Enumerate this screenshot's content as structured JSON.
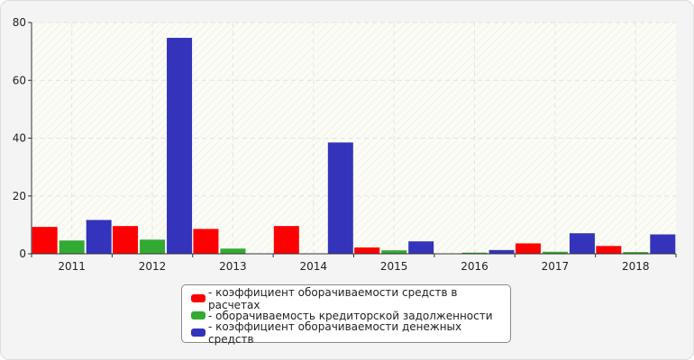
{
  "chart_data": {
    "type": "bar",
    "categories": [
      "2011",
      "2012",
      "2013",
      "2014",
      "2015",
      "2016",
      "2017",
      "2018"
    ],
    "series": [
      {
        "name": "- коэффициент оборачиваемости средств в расчетах",
        "color": "#ff0000",
        "values": [
          9.3,
          9.6,
          8.6,
          9.6,
          2.2,
          0,
          3.6,
          2.7
        ]
      },
      {
        "name": "- оборачиваемость кредиторской задолженности",
        "color": "#33aa33",
        "values": [
          4.6,
          4.9,
          1.8,
          0,
          1.2,
          0.4,
          0.7,
          0.6
        ]
      },
      {
        "name": "- коэффициент оборачиваемости денежных средств",
        "color": "#3333bb",
        "values": [
          11.7,
          74.7,
          0,
          38.5,
          4.3,
          1.3,
          7.1,
          6.7
        ]
      }
    ],
    "yticks": [
      0,
      20,
      40,
      60,
      80
    ],
    "ylim": [
      0,
      80
    ],
    "grid": true,
    "legend_position": "bottom"
  }
}
